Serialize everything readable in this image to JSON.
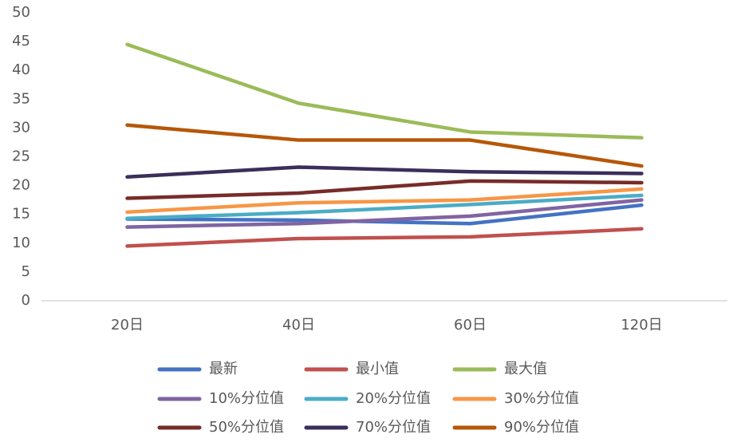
{
  "chart_data": {
    "type": "line",
    "categories": [
      "20日",
      "40日",
      "60日",
      "120日"
    ],
    "series": [
      {
        "name": "最新",
        "color": "#4472c4",
        "values": [
          14.2,
          14.0,
          13.4,
          16.6
        ]
      },
      {
        "name": "最小值",
        "color": "#c0504d",
        "values": [
          9.5,
          10.8,
          11.1,
          12.5
        ]
      },
      {
        "name": "最大值",
        "color": "#9bbb59",
        "values": [
          44.5,
          34.3,
          29.3,
          28.3
        ]
      },
      {
        "name": "10%分位值",
        "color": "#8064a2",
        "values": [
          12.8,
          13.4,
          14.7,
          17.5
        ]
      },
      {
        "name": "20%分位值",
        "color": "#4bacc6",
        "values": [
          14.3,
          15.3,
          16.7,
          18.3
        ]
      },
      {
        "name": "30%分位值",
        "color": "#f79646",
        "values": [
          15.4,
          17.0,
          17.5,
          19.4
        ]
      },
      {
        "name": "50%分位值",
        "color": "#772c2a",
        "values": [
          17.8,
          18.7,
          20.8,
          20.5
        ]
      },
      {
        "name": "70%分位值",
        "color": "#3b2e5a",
        "values": [
          21.5,
          23.2,
          22.4,
          22.1
        ]
      },
      {
        "name": "90%分位值",
        "color": "#b65708",
        "values": [
          30.5,
          27.9,
          27.9,
          23.4
        ]
      }
    ],
    "ylim": [
      0,
      50
    ],
    "yticks": [
      0,
      5,
      10,
      15,
      20,
      25,
      30,
      35,
      40,
      45,
      50
    ],
    "grid": false
  }
}
